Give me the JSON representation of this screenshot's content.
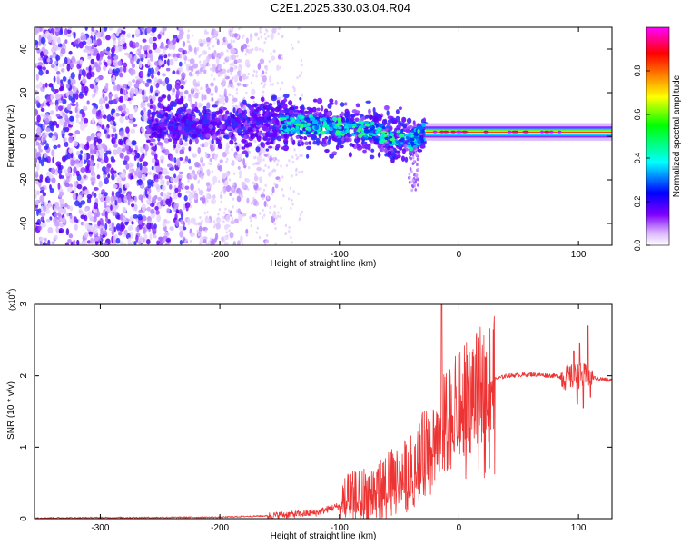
{
  "title": "C2E1.2025.330.03.04.R04",
  "chart_data": [
    {
      "type": "heatmap",
      "xlabel": "Height of straight line (km)",
      "ylabel": "Frequency (Hz)",
      "xlim": [
        -355,
        128
      ],
      "ylim": [
        -50,
        50
      ],
      "xticks": [
        -300,
        -200,
        -100,
        0,
        100
      ],
      "yticks": [
        -40,
        -20,
        0,
        20,
        40
      ],
      "colorbar": {
        "label": "Normalized spectral amplitude",
        "ticks": [
          "0.0",
          "0.2",
          "0.4",
          "0.6",
          "0.8"
        ],
        "tick_values": [
          0.0,
          0.2,
          0.4,
          0.6,
          0.8
        ],
        "range": [
          0,
          1
        ],
        "colors": [
          "#ffffff",
          "#7f00ff",
          "#0000ff",
          "#00ffff",
          "#00ff00",
          "#ffff00",
          "#ff8000",
          "#ff0000",
          "#ff00ff"
        ]
      },
      "ridge": {
        "description_x": [
          -260,
          -200,
          -160,
          -120,
          -80,
          -40,
          -28,
          0,
          50,
          100,
          128
        ],
        "center_freq_hz": [
          5,
          5,
          6,
          5,
          3,
          -2,
          2,
          2,
          2,
          2,
          2
        ]
      }
    },
    {
      "type": "line",
      "xlabel": "Height of straight line (km)",
      "ylabel": "SNR (10 * v/v)",
      "multiplier_label": "(x10",
      "multiplier_exp": "4",
      "xlim": [
        -355,
        128
      ],
      "ylim": [
        0,
        3
      ],
      "xticks": [
        -300,
        -200,
        -100,
        0,
        100
      ],
      "yticks": [
        0,
        1,
        2,
        3
      ],
      "series_color": "#ee3333",
      "envelope": {
        "x": [
          -355,
          -200,
          -160,
          -120,
          -100,
          -80,
          -60,
          -40,
          -30,
          -20,
          -10,
          0,
          10,
          20,
          30,
          40,
          60,
          80,
          90,
          100,
          110,
          128
        ],
        "y": [
          0.01,
          0.02,
          0.04,
          0.08,
          0.18,
          0.3,
          0.45,
          0.65,
          0.9,
          1.1,
          1.4,
          1.55,
          1.72,
          1.85,
          1.95,
          2.0,
          2.02,
          2.0,
          1.97,
          2.0,
          1.98,
          1.93
        ]
      },
      "spikes": [
        {
          "x": -14.5,
          "y": 3.0
        },
        {
          "x": 96,
          "y": 2.35
        },
        {
          "x": 99,
          "y": 1.6
        },
        {
          "x": 101,
          "y": 2.45
        },
        {
          "x": 104,
          "y": 1.55
        },
        {
          "x": 108,
          "y": 2.7
        },
        {
          "x": 110,
          "y": 1.7
        }
      ]
    }
  ]
}
